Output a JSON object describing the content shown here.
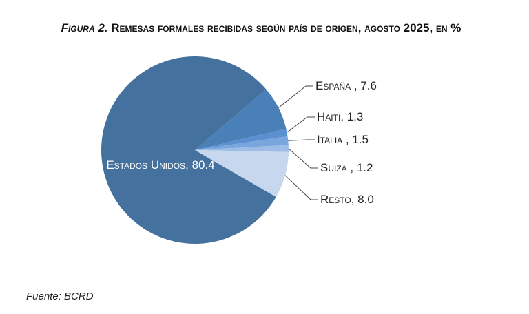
{
  "chart_data": {
    "type": "pie",
    "figure_label": "Figura 2.",
    "title": "Remesas formales recibidas según país de origen, agosto 2025, en %",
    "categories": [
      "Estados Unidos",
      "España",
      "Haití",
      "Italia",
      "Suiza",
      "Resto"
    ],
    "values": [
      80.4,
      7.6,
      1.3,
      1.5,
      1.2,
      8.0
    ],
    "value_labels": [
      ", 80.4",
      " , 7.6",
      ", 1.3",
      " , 1.5",
      " , 1.2",
      ", 8.0"
    ],
    "colors": [
      "#44719e",
      "#4a80b8",
      "#5a90cf",
      "#79a6dd",
      "#9dbde6",
      "#c6d7ee"
    ],
    "source": "Fuente: BCRD"
  }
}
